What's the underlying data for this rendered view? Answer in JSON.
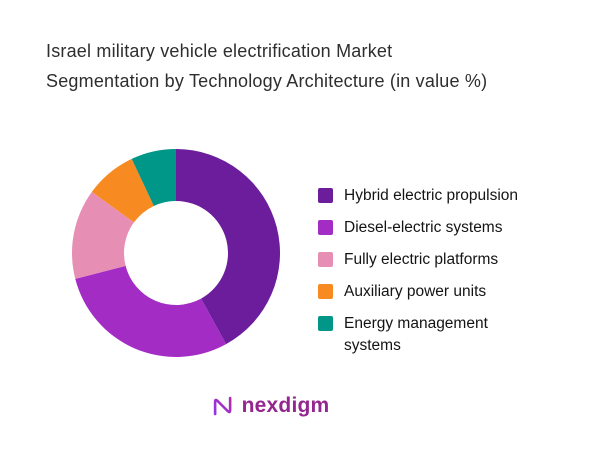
{
  "title": {
    "full": "Israel military vehicle electrification Market Segmentation by Technology Architecture (in value %)"
  },
  "chart_data": {
    "type": "pie",
    "subtype": "donut",
    "title": "Israel military vehicle electrification Market Segmentation by Technology Architecture (in value %)",
    "title_lines": [
      "Israel military vehicle electrification Market",
      "Segmentation by Technology Architecture (in value %)"
    ],
    "categories": [
      "Hybrid electric propulsion",
      "Diesel-electric systems",
      "Fully electric platforms",
      "Auxiliary power units",
      "Energy management systems"
    ],
    "values": [
      42,
      29,
      14,
      8,
      7
    ],
    "colors": [
      "#6b1d9b",
      "#a32cc4",
      "#e78eb4",
      "#f78b21",
      "#009688"
    ],
    "start_angle_deg": 0,
    "direction": "clockwise",
    "inner_radius_ratio": 0.5,
    "legend_position": "right",
    "grid": false
  },
  "legend": {
    "labels": [
      "Hybrid electric propulsion",
      "Diesel-electric systems",
      "Fully electric platforms",
      "Auxiliary power units",
      "Energy management\nsystems"
    ]
  },
  "logo": {
    "text": "nexdigm",
    "brand_color": "#93268F"
  }
}
